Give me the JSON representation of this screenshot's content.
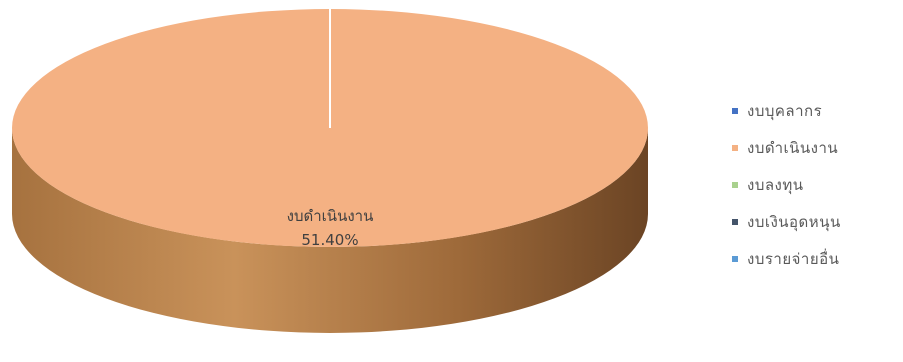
{
  "chart_data": {
    "type": "pie",
    "title": "",
    "categories": [
      "งบบุคลากร",
      "งบดำเนินงาน",
      "งบลงทุน",
      "งบเงินอุดหนุน",
      "งบรายจ่ายอื่น"
    ],
    "colors": [
      "#4472c4",
      "#f4b183",
      "#a9d18e",
      "#44546a",
      "#5b9bd5"
    ],
    "values": [
      0,
      51.4,
      0,
      0,
      0
    ],
    "data_label": {
      "category": "งบดำเนินงาน",
      "value_text": "51.40%"
    },
    "legend_position": "right",
    "style": "3d"
  }
}
